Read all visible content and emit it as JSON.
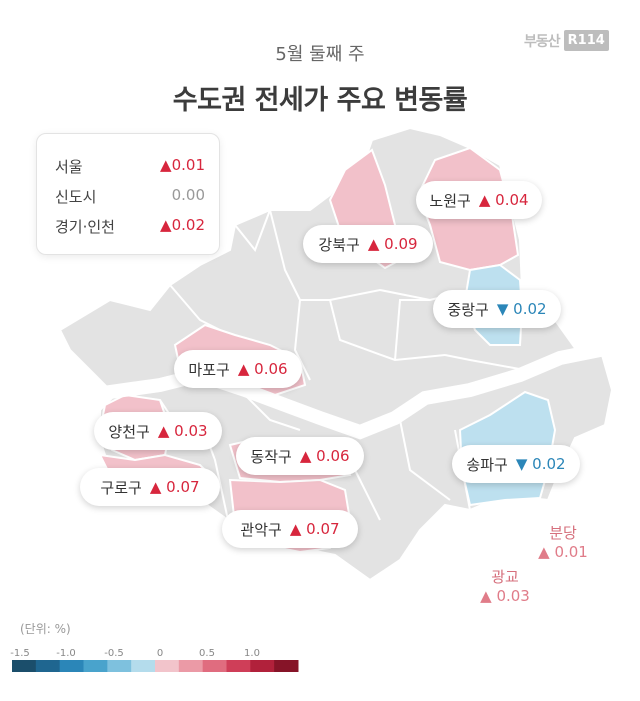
{
  "logo": {
    "text": "부동산",
    "badge": "R114"
  },
  "header": {
    "subtitle": "5월 둘째 주",
    "title": "수도권 전세가 주요 변동률"
  },
  "summary": [
    {
      "label": "서울",
      "value": "0.01",
      "arrow": "▲",
      "trend": "up"
    },
    {
      "label": "신도시",
      "value": "0.00",
      "arrow": "",
      "trend": "flat"
    },
    {
      "label": "경기·인천",
      "value": "0.02",
      "arrow": "▲",
      "trend": "up"
    }
  ],
  "districts": [
    {
      "name": "노원구",
      "value": "0.04",
      "arrow": "▲",
      "trend": "up"
    },
    {
      "name": "강북구",
      "value": "0.09",
      "arrow": "▲",
      "trend": "up"
    },
    {
      "name": "중랑구",
      "value": "0.02",
      "arrow": "▼",
      "trend": "down"
    },
    {
      "name": "마포구",
      "value": "0.06",
      "arrow": "▲",
      "trend": "up"
    },
    {
      "name": "양천구",
      "value": "0.03",
      "arrow": "▲",
      "trend": "up"
    },
    {
      "name": "동작구",
      "value": "0.06",
      "arrow": "▲",
      "trend": "up"
    },
    {
      "name": "송파구",
      "value": "0.02",
      "arrow": "▼",
      "trend": "down"
    },
    {
      "name": "구로구",
      "value": "0.07",
      "arrow": "▲",
      "trend": "up"
    },
    {
      "name": "관악구",
      "value": "0.07",
      "arrow": "▲",
      "trend": "up"
    }
  ],
  "outside": [
    {
      "name": "분당",
      "value": "0.01",
      "arrow": "▲"
    },
    {
      "name": "광교",
      "value": "0.03",
      "arrow": "▲"
    }
  ],
  "legend": {
    "unit": "(단위: %)",
    "ticks": [
      "-1.5",
      "-1.0",
      "-0.5",
      "0",
      "0.5",
      "1.0"
    ],
    "colors": [
      "#1b4e6b",
      "#1f6690",
      "#2b86b8",
      "#49a3cc",
      "#7ec1de",
      "#b4dcec",
      "#f2c4cb",
      "#eb9aa6",
      "#e06c7f",
      "#cf3e58",
      "#b1213b",
      "#861428"
    ]
  },
  "colors": {
    "up_fill": "#f2c1ca",
    "down_fill": "#bde0ef",
    "neutral_fill": "#e3e3e3",
    "river": "#ffffff"
  }
}
